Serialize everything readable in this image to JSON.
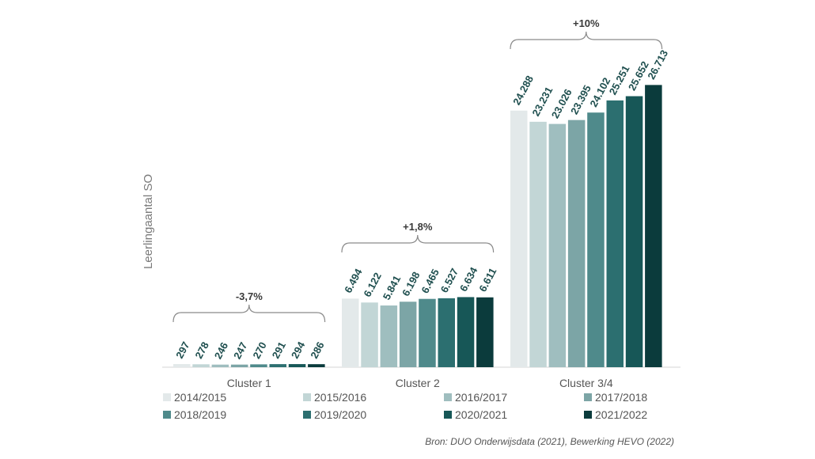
{
  "chart_data": {
    "type": "bar",
    "ylabel": "Leerlingaantal SO",
    "categories": [
      "Cluster 1",
      "Cluster 2",
      "Cluster 3/4"
    ],
    "ylim": [
      0,
      28000
    ],
    "grid": false,
    "legend_position": "bottom",
    "series": [
      {
        "name": "2014/2015",
        "color": "#e3e9ea",
        "values": [
          297,
          6494,
          24288
        ],
        "labels": [
          "297",
          "6.494",
          "24.288"
        ]
      },
      {
        "name": "2015/2016",
        "color": "#c2d6d6",
        "values": [
          278,
          6122,
          23231
        ],
        "labels": [
          "278",
          "6.122",
          "23.231"
        ]
      },
      {
        "name": "2016/2017",
        "color": "#9fbebf",
        "values": [
          246,
          5841,
          23026
        ],
        "labels": [
          "246",
          "5.841",
          "23.026"
        ]
      },
      {
        "name": "2017/2018",
        "color": "#7ca5a6",
        "values": [
          247,
          6198,
          23395
        ],
        "labels": [
          "247",
          "6.198",
          "23.395"
        ]
      },
      {
        "name": "2018/2019",
        "color": "#4f8a8b",
        "values": [
          270,
          6465,
          24102
        ],
        "labels": [
          "270",
          "6.465",
          "24.102"
        ]
      },
      {
        "name": "2019/2020",
        "color": "#2c6f70",
        "values": [
          291,
          6527,
          25251
        ],
        "labels": [
          "291",
          "6.527",
          "25.251"
        ]
      },
      {
        "name": "2020/2021",
        "color": "#175757",
        "values": [
          294,
          6634,
          25652
        ],
        "labels": [
          "294",
          "6.634",
          "25.652"
        ]
      },
      {
        "name": "2021/2022",
        "color": "#0b3b3c",
        "values": [
          286,
          6611,
          26713
        ],
        "labels": [
          "286",
          "6.611",
          "26.713"
        ]
      }
    ],
    "annotations": [
      "-3,7%",
      "+1,8%",
      "+10%"
    ],
    "source": "Bron: DUO Onderwijsdata (2021), Bewerking HEVO (2022)"
  }
}
